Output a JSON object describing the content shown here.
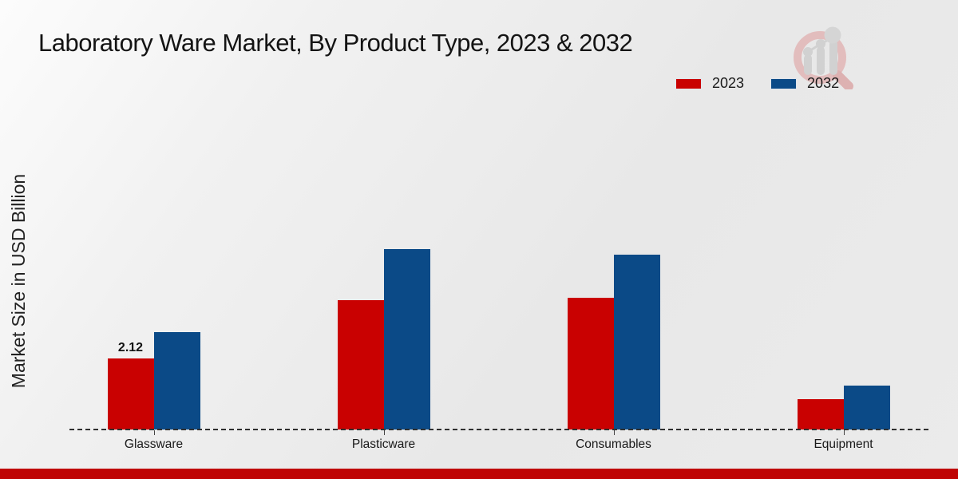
{
  "title": "Laboratory Ware Market, By Product Type, 2023 & 2032",
  "ylabel": "Market Size in USD Billion",
  "legend": [
    {
      "label": "2023",
      "color": "#c90101"
    },
    {
      "label": "2032",
      "color": "#0b4a87"
    }
  ],
  "footer": {
    "accent_color": "#bf0404"
  },
  "logo": {
    "name": "market-research-watermark-logo",
    "ring_color": "#e2b6b6",
    "handle_color": "#dba8a8",
    "bars_color": "#cdcdcd"
  },
  "chart_data": {
    "type": "bar",
    "title": "Laboratory Ware Market, By Product Type, 2023 & 2032",
    "xlabel": "",
    "ylabel": "Market Size in USD Billion",
    "categories": [
      "Glassware",
      "Plasticware",
      "Consumables",
      "Equipment"
    ],
    "series": [
      {
        "name": "2023",
        "color": "#c90101",
        "values": [
          2.12,
          3.85,
          3.9,
          0.9
        ]
      },
      {
        "name": "2032",
        "color": "#0b4a87",
        "values": [
          2.9,
          5.35,
          5.2,
          1.3
        ]
      }
    ],
    "data_labels": [
      [
        "2.12",
        null,
        null,
        null
      ],
      [
        null,
        null,
        null,
        null
      ]
    ],
    "ylim": [
      0,
      6
    ],
    "y_axis_visible": false,
    "gridlines": false,
    "baseline_style": "dashed",
    "legend_position": "top-right",
    "units": "USD Billion"
  }
}
